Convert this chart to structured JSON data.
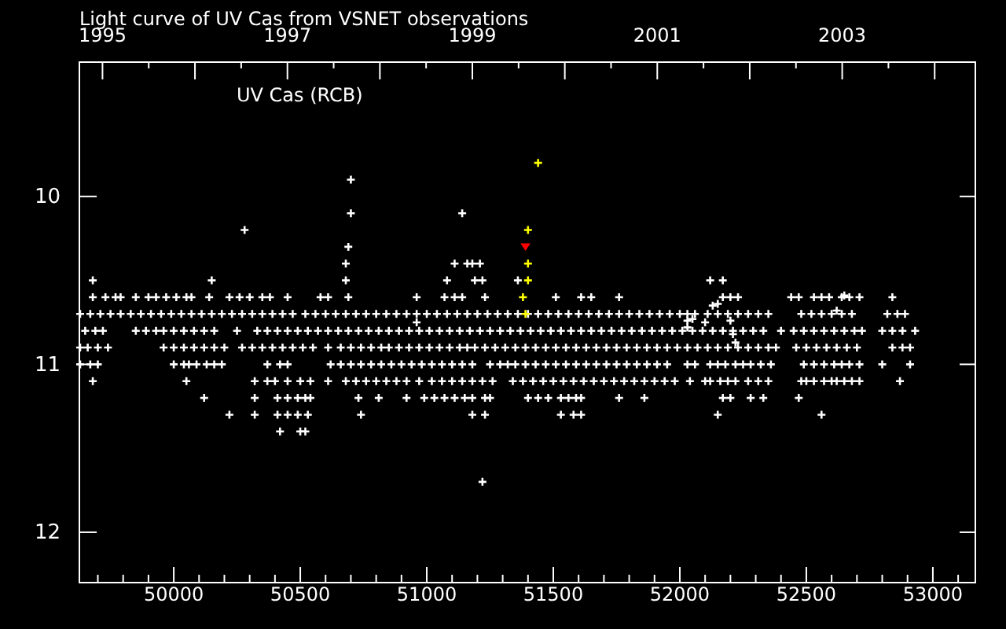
{
  "chart_data": {
    "type": "scatter",
    "title": "Light curve of UV Cas from VSNET observations",
    "annotations": [
      "UV Cas (RCB)"
    ],
    "marker": "cross",
    "xlim": [
      49627,
      53168
    ],
    "ylim": [
      12.3,
      9.2
    ],
    "x2lim": [
      1994.75,
      2004.44
    ],
    "xticks": [
      {
        "value": 49700,
        "label": null
      },
      {
        "value": 49800,
        "label": null
      },
      {
        "value": 49900,
        "label": null
      },
      50000,
      {
        "value": 50100,
        "label": null
      },
      {
        "value": 50200,
        "label": null
      },
      {
        "value": 50300,
        "label": null
      },
      {
        "value": 50400,
        "label": null
      },
      50500,
      {
        "value": 50600,
        "label": null
      },
      {
        "value": 50700,
        "label": null
      },
      {
        "value": 50800,
        "label": null
      },
      {
        "value": 50900,
        "label": null
      },
      51000,
      {
        "value": 51100,
        "label": null
      },
      {
        "value": 51200,
        "label": null
      },
      {
        "value": 51300,
        "label": null
      },
      {
        "value": 51400,
        "label": null
      },
      51500,
      {
        "value": 51600,
        "label": null
      },
      {
        "value": 51700,
        "label": null
      },
      {
        "value": 51800,
        "label": null
      },
      {
        "value": 51900,
        "label": null
      },
      52000,
      {
        "value": 52100,
        "label": null
      },
      {
        "value": 52200,
        "label": null
      },
      {
        "value": 52300,
        "label": null
      },
      {
        "value": 52400,
        "label": null
      },
      52500,
      {
        "value": 52600,
        "label": null
      },
      {
        "value": 52700,
        "label": null
      },
      {
        "value": 52800,
        "label": null
      },
      {
        "value": 52900,
        "label": null
      },
      53000,
      {
        "value": 53100,
        "label": null
      }
    ],
    "x2ticks": [
      1995,
      {
        "value": 1995.5,
        "label": null
      },
      {
        "value": 1996,
        "label": null
      },
      {
        "value": 1996.5,
        "label": null
      },
      1997,
      {
        "value": 1997.5,
        "label": null
      },
      {
        "value": 1998,
        "label": null
      },
      {
        "value": 1998.5,
        "label": null
      },
      1999,
      {
        "value": 1999.5,
        "label": null
      },
      {
        "value": 2000,
        "label": null
      },
      {
        "value": 2000.5,
        "label": null
      },
      2001,
      {
        "value": 2001.5,
        "label": null
      },
      {
        "value": 2002,
        "label": null
      },
      {
        "value": 2002.5,
        "label": null
      },
      2003,
      {
        "value": 2003.5,
        "label": null
      },
      {
        "value": 2004,
        "label": null
      }
    ],
    "yticks": [
      10,
      11,
      12
    ],
    "series": [
      {
        "color": "#ffffff",
        "x": [
          49630,
          49670,
          49710,
          49750,
          49790,
          49830,
          49870,
          49910,
          49950,
          49990,
          50030,
          50070,
          50110,
          50150,
          50190,
          50230,
          50270,
          50310,
          50350,
          50390,
          50430,
          50470,
          50520,
          50560,
          50600,
          50640,
          50680,
          50720,
          50760,
          50800,
          50840,
          50880,
          50920,
          50960,
          51000,
          51040,
          51080,
          51120,
          51160,
          51200,
          51240,
          51280,
          51320,
          51360,
          51400,
          51440,
          51480,
          51520,
          51560,
          51600,
          51640,
          51680,
          51720,
          51760,
          51800,
          51840,
          51880,
          51920,
          51960,
          52000,
          52030,
          52060,
          52110,
          52150,
          52190,
          52230,
          52270,
          52310,
          52350,
          52480,
          52520,
          52560,
          52600,
          52640,
          52680,
          52820,
          52860,
          52890,
          49650,
          49690,
          49720,
          49850,
          49890,
          49930,
          49960,
          50000,
          50040,
          50080,
          50120,
          50160,
          50250,
          50330,
          50370,
          50410,
          50450,
          50490,
          50530,
          50570,
          50610,
          50650,
          50690,
          50730,
          50770,
          50810,
          50850,
          50890,
          50930,
          50970,
          51010,
          51050,
          51090,
          51130,
          51170,
          51210,
          51250,
          51290,
          51330,
          51370,
          51410,
          51450,
          51490,
          51530,
          51570,
          51610,
          51650,
          51690,
          51730,
          51770,
          51810,
          51850,
          51890,
          51930,
          51970,
          52010,
          52050,
          52090,
          52130,
          52170,
          52210,
          52250,
          52290,
          52330,
          52400,
          52450,
          52490,
          52530,
          52570,
          52610,
          52650,
          52690,
          52720,
          52800,
          52840,
          52880,
          52930,
          49630,
          49660,
          49700,
          49740,
          49960,
          50000,
          50040,
          50080,
          50120,
          50160,
          50200,
          50270,
          50310,
          50350,
          50390,
          50430,
          50470,
          50510,
          50550,
          50610,
          50660,
          50700,
          50740,
          50780,
          50820,
          50850,
          50890,
          50930,
          50970,
          51010,
          51050,
          51090,
          51130,
          51160,
          51190,
          51230,
          51270,
          51310,
          51350,
          51390,
          51430,
          51470,
          51510,
          51550,
          51590,
          51630,
          51670,
          51710,
          51750,
          51790,
          51830,
          51870,
          51910,
          51950,
          51990,
          52030,
          52070,
          52110,
          52150,
          52190,
          52230,
          52270,
          52310,
          52350,
          52380,
          52460,
          52500,
          52540,
          52580,
          52620,
          52660,
          52700,
          52840,
          52880,
          52910,
          49630,
          49670,
          49700,
          50000,
          50040,
          50060,
          50090,
          50130,
          50160,
          50190,
          50370,
          50420,
          50450,
          50620,
          50660,
          50700,
          50740,
          50780,
          50820,
          50860,
          50900,
          50940,
          50980,
          51020,
          51060,
          51100,
          51140,
          51180,
          51250,
          51290,
          51320,
          51350,
          51390,
          51430,
          51470,
          51510,
          51550,
          51590,
          51630,
          51670,
          51710,
          51750,
          51790,
          51830,
          51870,
          51910,
          51950,
          52030,
          52060,
          52120,
          52150,
          52180,
          52220,
          52250,
          52280,
          52320,
          52360,
          52490,
          52530,
          52570,
          52610,
          52640,
          52670,
          52710,
          52800,
          52910,
          49680,
          50050,
          50320,
          50370,
          50400,
          50450,
          50500,
          50540,
          50610,
          50680,
          50720,
          50760,
          50800,
          50840,
          50880,
          50920,
          50970,
          51020,
          51060,
          51100,
          51140,
          51180,
          51220,
          51260,
          51340,
          51380,
          51420,
          51460,
          51500,
          51540,
          51580,
          51620,
          51660,
          51700,
          51740,
          51780,
          51820,
          51860,
          51900,
          51940,
          51980,
          52040,
          52100,
          52120,
          52160,
          52190,
          52220,
          52270,
          52310,
          52350,
          52480,
          52500,
          52530,
          52570,
          52600,
          52620,
          52650,
          52680,
          52710,
          52870,
          50120,
          50320,
          50410,
          50450,
          50490,
          50520,
          50540,
          50730,
          50810,
          50920,
          50990,
          51030,
          51070,
          51110,
          51150,
          51180,
          51230,
          51250,
          51400,
          51440,
          51480,
          51530,
          51560,
          51590,
          51610,
          51760,
          51860,
          52170,
          52200,
          52280,
          52330,
          52470,
          50220,
          50320,
          50410,
          50450,
          50490,
          50530,
          50740,
          51180,
          51230,
          51530,
          51580,
          51610,
          52150,
          52560,
          50420,
          50500,
          50520,
          51220,
          49680,
          49730,
          49770,
          49790,
          49850,
          49900,
          49930,
          49970,
          50010,
          50050,
          50070,
          50140,
          50220,
          50260,
          50300,
          50350,
          50380,
          50450,
          50580,
          50610,
          50690,
          50960,
          51070,
          51110,
          51140,
          51230,
          51510,
          51610,
          51650,
          51760,
          52170,
          52200,
          52230,
          52440,
          52470,
          52530,
          52560,
          52590,
          52640,
          52670,
          52710,
          52840,
          49680,
          50150,
          50680,
          51080,
          51190,
          51220,
          51360,
          52120,
          52170,
          50680,
          51110,
          51160,
          51180,
          51210,
          50690,
          50280,
          50700,
          51140,
          50700,
          50960,
          52030,
          52050,
          52030,
          52100,
          52130,
          52150,
          52200,
          52210,
          52220,
          52620,
          52650
        ],
        "values": [
          10.7,
          10.7,
          10.7,
          10.7,
          10.7,
          10.7,
          10.7,
          10.7,
          10.7,
          10.7,
          10.7,
          10.7,
          10.7,
          10.7,
          10.7,
          10.7,
          10.7,
          10.7,
          10.7,
          10.7,
          10.7,
          10.7,
          10.7,
          10.7,
          10.7,
          10.7,
          10.7,
          10.7,
          10.7,
          10.7,
          10.7,
          10.7,
          10.7,
          10.7,
          10.7,
          10.7,
          10.7,
          10.7,
          10.7,
          10.7,
          10.7,
          10.7,
          10.7,
          10.7,
          10.7,
          10.7,
          10.7,
          10.7,
          10.7,
          10.7,
          10.7,
          10.7,
          10.7,
          10.7,
          10.7,
          10.7,
          10.7,
          10.7,
          10.7,
          10.7,
          10.7,
          10.7,
          10.7,
          10.7,
          10.7,
          10.7,
          10.7,
          10.7,
          10.7,
          10.7,
          10.7,
          10.7,
          10.7,
          10.7,
          10.7,
          10.7,
          10.7,
          10.7,
          10.8,
          10.8,
          10.8,
          10.8,
          10.8,
          10.8,
          10.8,
          10.8,
          10.8,
          10.8,
          10.8,
          10.8,
          10.8,
          10.8,
          10.8,
          10.8,
          10.8,
          10.8,
          10.8,
          10.8,
          10.8,
          10.8,
          10.8,
          10.8,
          10.8,
          10.8,
          10.8,
          10.8,
          10.8,
          10.8,
          10.8,
          10.8,
          10.8,
          10.8,
          10.8,
          10.8,
          10.8,
          10.8,
          10.8,
          10.8,
          10.8,
          10.8,
          10.8,
          10.8,
          10.8,
          10.8,
          10.8,
          10.8,
          10.8,
          10.8,
          10.8,
          10.8,
          10.8,
          10.8,
          10.8,
          10.8,
          10.8,
          10.8,
          10.8,
          10.8,
          10.8,
          10.8,
          10.8,
          10.8,
          10.8,
          10.8,
          10.8,
          10.8,
          10.8,
          10.8,
          10.8,
          10.8,
          10.8,
          10.8,
          10.8,
          10.8,
          10.8,
          10.9,
          10.9,
          10.9,
          10.9,
          10.9,
          10.9,
          10.9,
          10.9,
          10.9,
          10.9,
          10.9,
          10.9,
          10.9,
          10.9,
          10.9,
          10.9,
          10.9,
          10.9,
          10.9,
          10.9,
          10.9,
          10.9,
          10.9,
          10.9,
          10.9,
          10.9,
          10.9,
          10.9,
          10.9,
          10.9,
          10.9,
          10.9,
          10.9,
          10.9,
          10.9,
          10.9,
          10.9,
          10.9,
          10.9,
          10.9,
          10.9,
          10.9,
          10.9,
          10.9,
          10.9,
          10.9,
          10.9,
          10.9,
          10.9,
          10.9,
          10.9,
          10.9,
          10.9,
          10.9,
          10.9,
          10.9,
          10.9,
          10.9,
          10.9,
          10.9,
          10.9,
          10.9,
          10.9,
          10.9,
          10.9,
          10.9,
          10.9,
          10.9,
          10.9,
          10.9,
          10.9,
          10.9,
          10.9,
          10.9,
          10.9,
          11.0,
          11.0,
          11.0,
          11.0,
          11.0,
          11.0,
          11.0,
          11.0,
          11.0,
          11.0,
          11.0,
          11.0,
          11.0,
          11.0,
          11.0,
          11.0,
          11.0,
          11.0,
          11.0,
          11.0,
          11.0,
          11.0,
          11.0,
          11.0,
          11.0,
          11.0,
          11.0,
          11.0,
          11.0,
          11.0,
          11.0,
          11.0,
          11.0,
          11.0,
          11.0,
          11.0,
          11.0,
          11.0,
          11.0,
          11.0,
          11.0,
          11.0,
          11.0,
          11.0,
          11.0,
          11.0,
          11.0,
          11.0,
          11.0,
          11.0,
          11.0,
          11.0,
          11.0,
          11.0,
          11.0,
          11.0,
          11.0,
          11.0,
          11.0,
          11.0,
          11.0,
          11.0,
          11.0,
          11.0,
          11.0,
          11.0,
          11.1,
          11.1,
          11.1,
          11.1,
          11.1,
          11.1,
          11.1,
          11.1,
          11.1,
          11.1,
          11.1,
          11.1,
          11.1,
          11.1,
          11.1,
          11.1,
          11.1,
          11.1,
          11.1,
          11.1,
          11.1,
          11.1,
          11.1,
          11.1,
          11.1,
          11.1,
          11.1,
          11.1,
          11.1,
          11.1,
          11.1,
          11.1,
          11.1,
          11.1,
          11.1,
          11.1,
          11.1,
          11.1,
          11.1,
          11.1,
          11.1,
          11.1,
          11.1,
          11.1,
          11.1,
          11.1,
          11.1,
          11.1,
          11.1,
          11.1,
          11.1,
          11.1,
          11.1,
          11.1,
          11.1,
          11.1,
          11.1,
          11.1,
          11.1,
          11.1,
          11.2,
          11.2,
          11.2,
          11.2,
          11.2,
          11.2,
          11.2,
          11.2,
          11.2,
          11.2,
          11.2,
          11.2,
          11.2,
          11.2,
          11.2,
          11.2,
          11.2,
          11.2,
          11.2,
          11.2,
          11.2,
          11.2,
          11.2,
          11.2,
          11.2,
          11.2,
          11.2,
          11.2,
          11.2,
          11.2,
          11.2,
          11.2,
          11.3,
          11.3,
          11.3,
          11.3,
          11.3,
          11.3,
          11.3,
          11.3,
          11.3,
          11.3,
          11.3,
          11.3,
          11.3,
          11.3,
          11.4,
          11.4,
          11.4,
          11.7,
          10.6,
          10.6,
          10.6,
          10.6,
          10.6,
          10.6,
          10.6,
          10.6,
          10.6,
          10.6,
          10.6,
          10.6,
          10.6,
          10.6,
          10.6,
          10.6,
          10.6,
          10.6,
          10.6,
          10.6,
          10.6,
          10.6,
          10.6,
          10.6,
          10.6,
          10.6,
          10.6,
          10.6,
          10.6,
          10.6,
          10.6,
          10.6,
          10.6,
          10.6,
          10.6,
          10.6,
          10.6,
          10.6,
          10.6,
          10.6,
          10.6,
          10.6,
          10.5,
          10.5,
          10.5,
          10.5,
          10.5,
          10.5,
          10.5,
          10.5,
          10.5,
          10.4,
          10.4,
          10.4,
          10.4,
          10.4,
          10.3,
          10.2,
          10.1,
          10.1,
          9.9,
          10.75,
          10.74,
          10.73,
          10.78,
          10.75,
          10.65,
          10.64,
          10.74,
          10.82,
          10.87,
          10.68,
          10.59
        ]
      },
      {
        "color": "#ffff00",
        "x": [
          51440,
          51400,
          51400,
          51400,
          51380,
          51390
        ],
        "values": [
          9.8,
          10.2,
          10.4,
          10.5,
          10.6,
          10.7
        ]
      },
      {
        "color": "#ff0000",
        "marker": "triangle",
        "x": [
          51390
        ],
        "values": [
          10.3
        ]
      }
    ]
  }
}
